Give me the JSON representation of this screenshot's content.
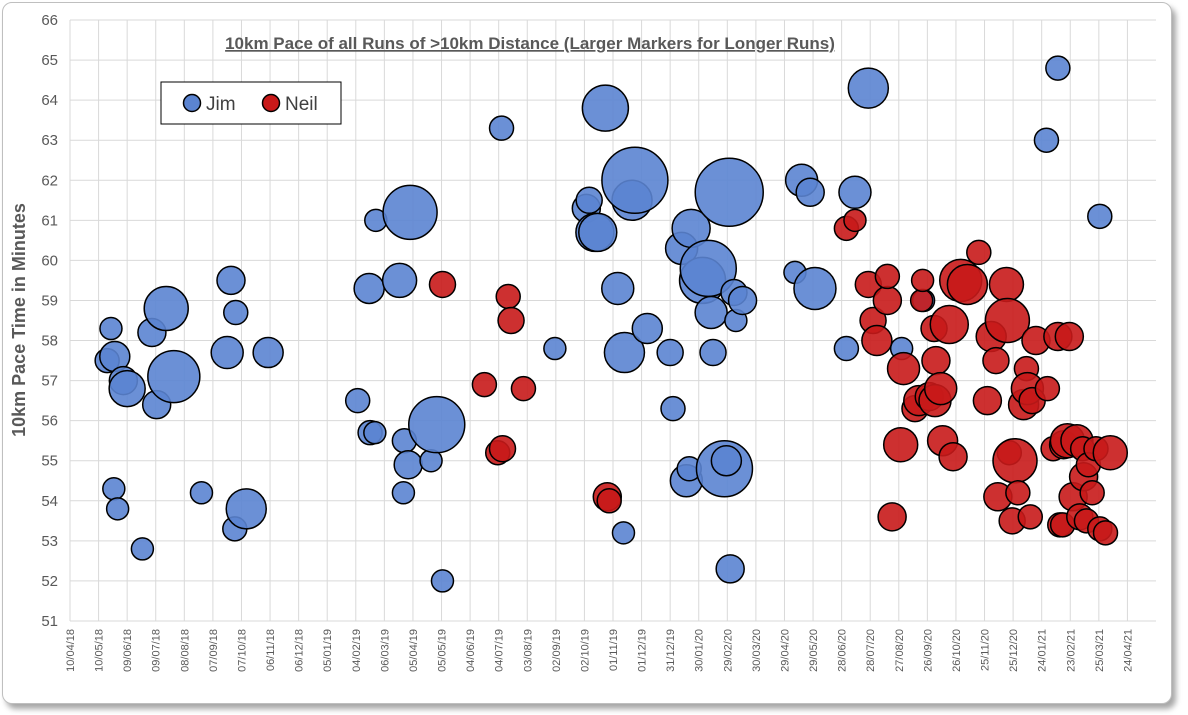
{
  "chart_data": {
    "type": "scatter",
    "title": "10km Pace of all Runs of >10km Distance (Larger Markers for Longer Runs)",
    "xlabel": "",
    "ylabel": "10km Pace Time in Minutes",
    "ylim": [
      51,
      66
    ],
    "xlim": [
      "2018-04-10",
      "2021-05-24"
    ],
    "yticks": [
      51,
      52,
      53,
      54,
      55,
      56,
      57,
      58,
      59,
      60,
      61,
      62,
      63,
      64,
      65,
      66
    ],
    "xticks": [
      "10/04/18",
      "10/05/18",
      "09/06/18",
      "09/07/18",
      "08/08/18",
      "07/09/18",
      "07/10/18",
      "06/11/18",
      "06/12/18",
      "05/01/19",
      "04/02/19",
      "06/03/19",
      "05/04/19",
      "05/05/19",
      "04/06/19",
      "04/07/19",
      "03/08/19",
      "02/09/19",
      "02/10/19",
      "01/11/19",
      "01/12/19",
      "31/12/19",
      "30/01/20",
      "29/02/20",
      "30/03/20",
      "29/04/20",
      "29/05/20",
      "28/06/20",
      "28/07/20",
      "27/08/20",
      "26/09/20",
      "26/10/20",
      "25/11/20",
      "25/12/20",
      "24/01/21",
      "23/02/21",
      "25/03/21",
      "24/04/21"
    ],
    "grid": true,
    "legend_position": "top-left",
    "series": [
      {
        "name": "Jim",
        "color": "#5b84d1",
        "points": [
          {
            "x": "2018-05-19",
            "y": 57.5,
            "size": 12
          },
          {
            "x": "2018-05-23",
            "y": 58.3,
            "size": 11
          },
          {
            "x": "2018-05-27",
            "y": 57.6,
            "size": 15
          },
          {
            "x": "2018-05-26",
            "y": 54.3,
            "size": 11
          },
          {
            "x": "2018-05-30",
            "y": 53.8,
            "size": 11
          },
          {
            "x": "2018-06-05",
            "y": 57.0,
            "size": 14
          },
          {
            "x": "2018-06-09",
            "y": 56.8,
            "size": 18
          },
          {
            "x": "2018-06-25",
            "y": 52.8,
            "size": 11
          },
          {
            "x": "2018-07-05",
            "y": 58.2,
            "size": 14
          },
          {
            "x": "2018-07-10",
            "y": 56.4,
            "size": 14
          },
          {
            "x": "2018-07-20",
            "y": 58.8,
            "size": 22
          },
          {
            "x": "2018-07-28",
            "y": 57.1,
            "size": 26
          },
          {
            "x": "2018-08-26",
            "y": 54.2,
            "size": 11
          },
          {
            "x": "2018-09-22",
            "y": 57.7,
            "size": 16
          },
          {
            "x": "2018-09-26",
            "y": 59.5,
            "size": 14
          },
          {
            "x": "2018-09-30",
            "y": 53.3,
            "size": 12
          },
          {
            "x": "2018-10-01",
            "y": 58.7,
            "size": 12
          },
          {
            "x": "2018-10-12",
            "y": 53.8,
            "size": 20
          },
          {
            "x": "2018-11-04",
            "y": 57.7,
            "size": 15
          },
          {
            "x": "2019-02-06",
            "y": 56.5,
            "size": 12
          },
          {
            "x": "2019-02-18",
            "y": 59.3,
            "size": 15
          },
          {
            "x": "2019-02-19",
            "y": 55.7,
            "size": 12
          },
          {
            "x": "2019-02-24",
            "y": 55.7,
            "size": 11
          },
          {
            "x": "2019-02-25",
            "y": 61.0,
            "size": 11
          },
          {
            "x": "2019-03-22",
            "y": 59.5,
            "size": 17
          },
          {
            "x": "2019-03-26",
            "y": 54.2,
            "size": 11
          },
          {
            "x": "2019-03-27",
            "y": 55.5,
            "size": 12
          },
          {
            "x": "2019-04-02",
            "y": 61.2,
            "size": 27
          },
          {
            "x": "2019-03-31",
            "y": 54.9,
            "size": 14
          },
          {
            "x": "2019-04-24",
            "y": 55.0,
            "size": 11
          },
          {
            "x": "2019-04-30",
            "y": 55.9,
            "size": 28
          },
          {
            "x": "2019-05-06",
            "y": 52.0,
            "size": 11
          },
          {
            "x": "2019-07-07",
            "y": 63.3,
            "size": 12
          },
          {
            "x": "2019-09-01",
            "y": 57.8,
            "size": 11
          },
          {
            "x": "2019-10-04",
            "y": 61.3,
            "size": 14
          },
          {
            "x": "2019-10-07",
            "y": 61.5,
            "size": 13
          },
          {
            "x": "2019-10-13",
            "y": 60.7,
            "size": 19
          },
          {
            "x": "2019-10-16",
            "y": 60.7,
            "size": 19
          },
          {
            "x": "2019-10-24",
            "y": 63.8,
            "size": 23
          },
          {
            "x": "2019-11-06",
            "y": 59.3,
            "size": 16
          },
          {
            "x": "2019-11-13",
            "y": 57.7,
            "size": 20
          },
          {
            "x": "2019-11-12",
            "y": 53.2,
            "size": 11
          },
          {
            "x": "2019-11-21",
            "y": 61.5,
            "size": 20
          },
          {
            "x": "2019-11-24",
            "y": 62.0,
            "size": 33
          },
          {
            "x": "2019-12-07",
            "y": 58.3,
            "size": 15
          },
          {
            "x": "2019-12-31",
            "y": 57.7,
            "size": 13
          },
          {
            "x": "2020-01-03",
            "y": 56.3,
            "size": 12
          },
          {
            "x": "2020-01-12",
            "y": 60.3,
            "size": 16
          },
          {
            "x": "2020-01-17",
            "y": 54.5,
            "size": 16
          },
          {
            "x": "2020-01-20",
            "y": 54.8,
            "size": 12
          },
          {
            "x": "2020-01-22",
            "y": 60.8,
            "size": 19
          },
          {
            "x": "2020-02-03",
            "y": 59.5,
            "size": 23
          },
          {
            "x": "2020-02-09",
            "y": 59.8,
            "size": 28
          },
          {
            "x": "2020-02-12",
            "y": 58.7,
            "size": 16
          },
          {
            "x": "2020-02-14",
            "y": 57.7,
            "size": 13
          },
          {
            "x": "2020-02-26",
            "y": 54.8,
            "size": 28
          },
          {
            "x": "2020-02-28",
            "y": 55.0,
            "size": 15
          },
          {
            "x": "2020-03-02",
            "y": 61.7,
            "size": 34
          },
          {
            "x": "2020-03-03",
            "y": 52.3,
            "size": 14
          },
          {
            "x": "2020-03-07",
            "y": 59.2,
            "size": 13
          },
          {
            "x": "2020-03-09",
            "y": 58.5,
            "size": 11
          },
          {
            "x": "2020-03-16",
            "y": 59.0,
            "size": 14
          },
          {
            "x": "2020-05-10",
            "y": 59.7,
            "size": 11
          },
          {
            "x": "2020-05-17",
            "y": 62.0,
            "size": 16
          },
          {
            "x": "2020-05-26",
            "y": 61.7,
            "size": 14
          },
          {
            "x": "2020-05-31",
            "y": 59.3,
            "size": 21
          },
          {
            "x": "2020-07-03",
            "y": 57.8,
            "size": 12
          },
          {
            "x": "2020-07-12",
            "y": 61.7,
            "size": 16
          },
          {
            "x": "2020-07-26",
            "y": 64.3,
            "size": 20
          },
          {
            "x": "2020-08-30",
            "y": 57.8,
            "size": 11
          },
          {
            "x": "2020-09-22",
            "y": 59.0,
            "size": 11
          },
          {
            "x": "2021-01-29",
            "y": 63.0,
            "size": 12
          },
          {
            "x": "2021-02-10",
            "y": 64.8,
            "size": 12
          },
          {
            "x": "2021-03-26",
            "y": 61.1,
            "size": 12
          }
        ]
      },
      {
        "name": "Neil",
        "color": "#c81919",
        "points": [
          {
            "x": "2019-05-06",
            "y": 59.4,
            "size": 13
          },
          {
            "x": "2019-06-19",
            "y": 56.9,
            "size": 12
          },
          {
            "x": "2019-07-03",
            "y": 55.2,
            "size": 12
          },
          {
            "x": "2019-07-08",
            "y": 55.3,
            "size": 13
          },
          {
            "x": "2019-07-14",
            "y": 59.1,
            "size": 12
          },
          {
            "x": "2019-07-17",
            "y": 58.5,
            "size": 13
          },
          {
            "x": "2019-07-30",
            "y": 56.8,
            "size": 12
          },
          {
            "x": "2019-10-26",
            "y": 54.1,
            "size": 14
          },
          {
            "x": "2019-10-28",
            "y": 54.0,
            "size": 12
          },
          {
            "x": "2020-07-03",
            "y": 60.8,
            "size": 12
          },
          {
            "x": "2020-07-12",
            "y": 61.0,
            "size": 11
          },
          {
            "x": "2020-07-26",
            "y": 59.4,
            "size": 13
          },
          {
            "x": "2020-07-31",
            "y": 58.5,
            "size": 13
          },
          {
            "x": "2020-08-04",
            "y": 58.0,
            "size": 15
          },
          {
            "x": "2020-08-15",
            "y": 59.0,
            "size": 14
          },
          {
            "x": "2020-08-15",
            "y": 59.6,
            "size": 12
          },
          {
            "x": "2020-08-20",
            "y": 53.6,
            "size": 14
          },
          {
            "x": "2020-08-29",
            "y": 55.4,
            "size": 17
          },
          {
            "x": "2020-09-01",
            "y": 57.3,
            "size": 16
          },
          {
            "x": "2020-09-13",
            "y": 56.3,
            "size": 13
          },
          {
            "x": "2020-09-17",
            "y": 56.5,
            "size": 15
          },
          {
            "x": "2020-09-20",
            "y": 59.0,
            "size": 11
          },
          {
            "x": "2020-09-21",
            "y": 59.5,
            "size": 11
          },
          {
            "x": "2020-09-28",
            "y": 56.6,
            "size": 14
          },
          {
            "x": "2020-10-04",
            "y": 56.5,
            "size": 16
          },
          {
            "x": "2020-10-05",
            "y": 57.5,
            "size": 14
          },
          {
            "x": "2020-10-03",
            "y": 58.3,
            "size": 13
          },
          {
            "x": "2020-10-10",
            "y": 56.8,
            "size": 16
          },
          {
            "x": "2020-10-12",
            "y": 55.5,
            "size": 15
          },
          {
            "x": "2020-10-19",
            "y": 58.4,
            "size": 19
          },
          {
            "x": "2020-10-23",
            "y": 55.1,
            "size": 14
          },
          {
            "x": "2020-10-31",
            "y": 59.5,
            "size": 21
          },
          {
            "x": "2020-11-07",
            "y": 59.4,
            "size": 20
          },
          {
            "x": "2020-11-19",
            "y": 60.2,
            "size": 12
          },
          {
            "x": "2020-11-28",
            "y": 56.5,
            "size": 14
          },
          {
            "x": "2020-12-02",
            "y": 58.1,
            "size": 15
          },
          {
            "x": "2020-12-07",
            "y": 57.5,
            "size": 13
          },
          {
            "x": "2020-12-09",
            "y": 54.1,
            "size": 14
          },
          {
            "x": "2020-12-18",
            "y": 59.4,
            "size": 17
          },
          {
            "x": "2020-12-19",
            "y": 58.5,
            "size": 22
          },
          {
            "x": "2020-12-21",
            "y": 55.2,
            "size": 12
          },
          {
            "x": "2020-12-24",
            "y": 53.5,
            "size": 13
          },
          {
            "x": "2020-12-27",
            "y": 55.0,
            "size": 22
          },
          {
            "x": "2020-12-30",
            "y": 54.2,
            "size": 12
          },
          {
            "x": "2021-01-05",
            "y": 56.4,
            "size": 15
          },
          {
            "x": "2021-01-08",
            "y": 57.3,
            "size": 12
          },
          {
            "x": "2021-01-09",
            "y": 56.8,
            "size": 16
          },
          {
            "x": "2021-01-12",
            "y": 53.6,
            "size": 12
          },
          {
            "x": "2021-01-14",
            "y": 56.5,
            "size": 13
          },
          {
            "x": "2021-01-18",
            "y": 58.0,
            "size": 14
          },
          {
            "x": "2021-01-30",
            "y": 56.8,
            "size": 12
          },
          {
            "x": "2021-02-05",
            "y": 55.3,
            "size": 12
          },
          {
            "x": "2021-02-10",
            "y": 58.1,
            "size": 14
          },
          {
            "x": "2021-02-12",
            "y": 53.4,
            "size": 12
          },
          {
            "x": "2021-02-15",
            "y": 53.4,
            "size": 12
          },
          {
            "x": "2021-02-16",
            "y": 55.4,
            "size": 14
          },
          {
            "x": "2021-02-20",
            "y": 55.5,
            "size": 17
          },
          {
            "x": "2021-02-22",
            "y": 58.1,
            "size": 14
          },
          {
            "x": "2021-02-26",
            "y": 54.1,
            "size": 14
          },
          {
            "x": "2021-03-02",
            "y": 55.5,
            "size": 16
          },
          {
            "x": "2021-03-05",
            "y": 53.6,
            "size": 13
          },
          {
            "x": "2021-03-08",
            "y": 55.3,
            "size": 12
          },
          {
            "x": "2021-03-09",
            "y": 54.6,
            "size": 14
          },
          {
            "x": "2021-03-12",
            "y": 53.5,
            "size": 12
          },
          {
            "x": "2021-03-14",
            "y": 54.9,
            "size": 12
          },
          {
            "x": "2021-03-18",
            "y": 54.2,
            "size": 12
          },
          {
            "x": "2021-03-22",
            "y": 55.3,
            "size": 12
          },
          {
            "x": "2021-03-26",
            "y": 53.3,
            "size": 12
          },
          {
            "x": "2021-04-01",
            "y": 53.2,
            "size": 12
          },
          {
            "x": "2021-04-06",
            "y": 55.2,
            "size": 17
          }
        ]
      }
    ]
  }
}
